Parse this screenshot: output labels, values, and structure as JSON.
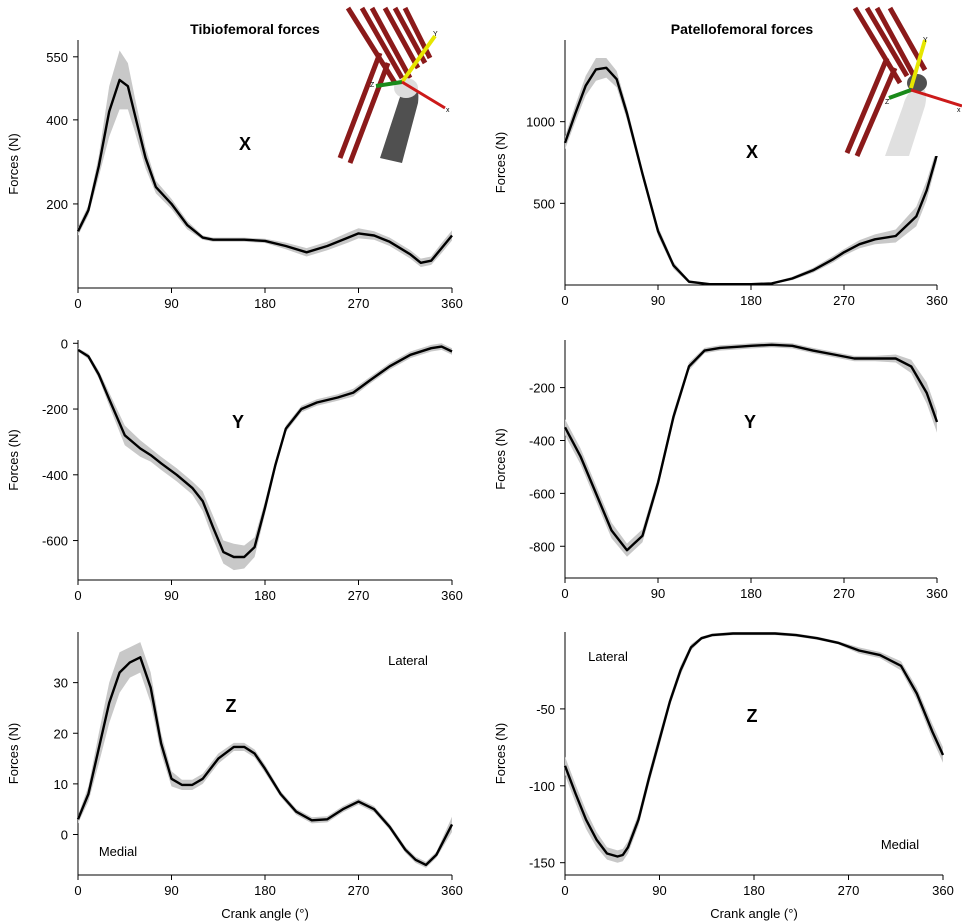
{
  "chart_data": [
    {
      "type": "line",
      "title": "Tibiofemoral forces",
      "panel_label": "X",
      "ylabel": "Forces (N)",
      "xlabel": "",
      "xlim": [
        0,
        360
      ],
      "ylim": [
        0,
        590
      ],
      "xticks": [
        0,
        90,
        180,
        270,
        360
      ],
      "yticks": [
        200,
        400,
        550
      ],
      "annotations": [],
      "band_color": "#c8c8c8",
      "line_color": "#000000",
      "series": [
        {
          "x": [
            0,
            10,
            20,
            30,
            40,
            48,
            55,
            65,
            75,
            90,
            105,
            120,
            130,
            160,
            180,
            200,
            220,
            240,
            260,
            270,
            285,
            300,
            320,
            330,
            340,
            350,
            360
          ],
          "y": [
            135,
            185,
            290,
            420,
            495,
            480,
            410,
            310,
            240,
            200,
            150,
            120,
            115,
            115,
            112,
            100,
            85,
            100,
            120,
            130,
            125,
            110,
            80,
            60,
            65,
            95,
            125
          ],
          "band": [
            10,
            12,
            25,
            60,
            70,
            55,
            40,
            25,
            15,
            12,
            10,
            5,
            5,
            5,
            5,
            8,
            10,
            10,
            12,
            12,
            10,
            10,
            10,
            10,
            10,
            12,
            12
          ]
        }
      ]
    },
    {
      "type": "line",
      "title": "Patellofemoral forces",
      "panel_label": "X",
      "ylabel": "Forces (N)",
      "xlabel": "",
      "xlim": [
        0,
        360
      ],
      "ylim": [
        0,
        1500
      ],
      "xticks": [
        0,
        90,
        180,
        270,
        360
      ],
      "yticks": [
        500,
        1000
      ],
      "annotations": [],
      "band_color": "#c8c8c8",
      "line_color": "#000000",
      "series": [
        {
          "x": [
            0,
            10,
            20,
            30,
            40,
            50,
            60,
            75,
            90,
            105,
            120,
            140,
            160,
            180,
            200,
            220,
            240,
            260,
            270,
            285,
            300,
            320,
            340,
            350,
            360
          ],
          "y": [
            870,
            1050,
            1220,
            1320,
            1330,
            1260,
            1050,
            680,
            330,
            120,
            20,
            5,
            5,
            5,
            10,
            40,
            90,
            160,
            200,
            250,
            280,
            300,
            420,
            580,
            800
          ],
          "band": [
            40,
            50,
            60,
            70,
            60,
            50,
            40,
            30,
            30,
            20,
            10,
            5,
            5,
            5,
            5,
            10,
            15,
            20,
            20,
            25,
            30,
            40,
            60,
            60,
            40
          ]
        }
      ]
    },
    {
      "type": "line",
      "title": "",
      "panel_label": "Y",
      "ylabel": "Forces (N)",
      "xlabel": "",
      "xlim": [
        0,
        360
      ],
      "ylim": [
        -720,
        10
      ],
      "xticks": [
        0,
        90,
        180,
        270,
        360
      ],
      "yticks": [
        0,
        -200,
        -400,
        -600
      ],
      "annotations": [],
      "band_color": "#c8c8c8",
      "line_color": "#000000",
      "series": [
        {
          "x": [
            0,
            10,
            20,
            30,
            45,
            60,
            70,
            80,
            95,
            110,
            120,
            130,
            140,
            150,
            160,
            170,
            180,
            190,
            200,
            215,
            230,
            250,
            265,
            280,
            300,
            320,
            340,
            350,
            360
          ],
          "y": [
            -20,
            -40,
            -95,
            -170,
            -280,
            -320,
            -340,
            -365,
            -400,
            -440,
            -480,
            -560,
            -635,
            -650,
            -650,
            -620,
            -500,
            -370,
            -260,
            -200,
            -180,
            -165,
            -150,
            -115,
            -70,
            -35,
            -15,
            -10,
            -25
          ],
          "band": [
            5,
            8,
            12,
            20,
            30,
            25,
            20,
            20,
            20,
            20,
            30,
            35,
            35,
            40,
            35,
            30,
            20,
            15,
            10,
            10,
            10,
            10,
            12,
            10,
            10,
            10,
            10,
            10,
            10
          ]
        }
      ]
    },
    {
      "type": "line",
      "title": "",
      "panel_label": "Y",
      "ylabel": "Forces (N)",
      "xlabel": "",
      "xlim": [
        0,
        360
      ],
      "ylim": [
        -920,
        -20
      ],
      "xticks": [
        0,
        90,
        180,
        270,
        360
      ],
      "yticks": [
        -200,
        -400,
        -600,
        -800
      ],
      "annotations": [],
      "band_color": "#c8c8c8",
      "line_color": "#000000",
      "series": [
        {
          "x": [
            0,
            15,
            30,
            45,
            60,
            75,
            90,
            105,
            120,
            135,
            150,
            170,
            180,
            200,
            220,
            240,
            260,
            280,
            300,
            320,
            335,
            350,
            360
          ],
          "y": [
            -350,
            -460,
            -600,
            -740,
            -815,
            -760,
            -560,
            -310,
            -120,
            -60,
            -50,
            -45,
            -42,
            -38,
            -42,
            -60,
            -75,
            -90,
            -90,
            -90,
            -120,
            -220,
            -330
          ],
          "band": [
            30,
            30,
            30,
            30,
            25,
            25,
            20,
            20,
            15,
            10,
            10,
            10,
            10,
            10,
            10,
            10,
            10,
            10,
            10,
            15,
            25,
            40,
            40
          ]
        }
      ]
    },
    {
      "type": "line",
      "title": "",
      "panel_label": "Z",
      "ylabel": "Forces (N)",
      "xlabel": "Crank angle (°)",
      "xlim": [
        0,
        360
      ],
      "ylim": [
        -8,
        40
      ],
      "xticks": [
        0,
        90,
        180,
        270,
        360
      ],
      "yticks": [
        0,
        10,
        20,
        30
      ],
      "annotations": [
        "Lateral",
        "Medial"
      ],
      "band_color": "#c8c8c8",
      "line_color": "#000000",
      "series": [
        {
          "x": [
            0,
            10,
            20,
            30,
            40,
            50,
            60,
            70,
            80,
            90,
            100,
            110,
            120,
            135,
            150,
            160,
            170,
            180,
            195,
            210,
            225,
            240,
            255,
            270,
            285,
            300,
            315,
            325,
            335,
            345,
            360
          ],
          "y": [
            3,
            8,
            17,
            26,
            32,
            34,
            35,
            29,
            18,
            11,
            9.8,
            9.8,
            11,
            15,
            17.3,
            17.3,
            16,
            13,
            8,
            4.5,
            2.8,
            3,
            5,
            6.5,
            5,
            1.5,
            -3,
            -5,
            -6,
            -4,
            2
          ],
          "band": [
            0.8,
            1.5,
            3,
            4,
            4,
            3,
            3,
            3,
            2,
            1.5,
            1,
            1,
            1,
            1,
            0.8,
            0.8,
            0.8,
            0.8,
            0.6,
            0.6,
            0.6,
            0.6,
            0.6,
            0.6,
            0.6,
            0.6,
            0.6,
            0.6,
            0.6,
            0.6,
            1.5
          ]
        }
      ]
    },
    {
      "type": "line",
      "title": "",
      "panel_label": "Z",
      "ylabel": "Forces (N)",
      "xlabel": "Crank angle (°)",
      "xlim": [
        0,
        360
      ],
      "ylim": [
        -158,
        0
      ],
      "xticks": [
        0,
        90,
        180,
        270,
        360
      ],
      "yticks": [
        -50,
        -100,
        -150
      ],
      "annotations": [
        "Lateral",
        "Medial"
      ],
      "band_color": "#c8c8c8",
      "line_color": "#000000",
      "series": [
        {
          "x": [
            0,
            10,
            20,
            30,
            40,
            50,
            55,
            60,
            70,
            80,
            90,
            100,
            110,
            120,
            130,
            140,
            160,
            180,
            200,
            220,
            240,
            260,
            280,
            300,
            320,
            335,
            350,
            360
          ],
          "y": [
            -87,
            -105,
            -122,
            -135,
            -144,
            -146,
            -145,
            -140,
            -122,
            -95,
            -70,
            -45,
            -25,
            -10,
            -4,
            -2,
            -1,
            -1,
            -1,
            -2,
            -4,
            -7,
            -12,
            -15,
            -22,
            -40,
            -65,
            -80
          ],
          "band": [
            6,
            6,
            6,
            5,
            4,
            4,
            4,
            4,
            4,
            4,
            4,
            3,
            3,
            2,
            1,
            1,
            1,
            1,
            1,
            1,
            1,
            1,
            2,
            2,
            3,
            4,
            5,
            5
          ]
        }
      ]
    }
  ],
  "figure": {
    "left_title": "Tibiofemoral forces",
    "right_title": "Patellofemoral forces",
    "axis_letters": {
      "y": "Y",
      "x": "x",
      "z": "Z"
    }
  }
}
